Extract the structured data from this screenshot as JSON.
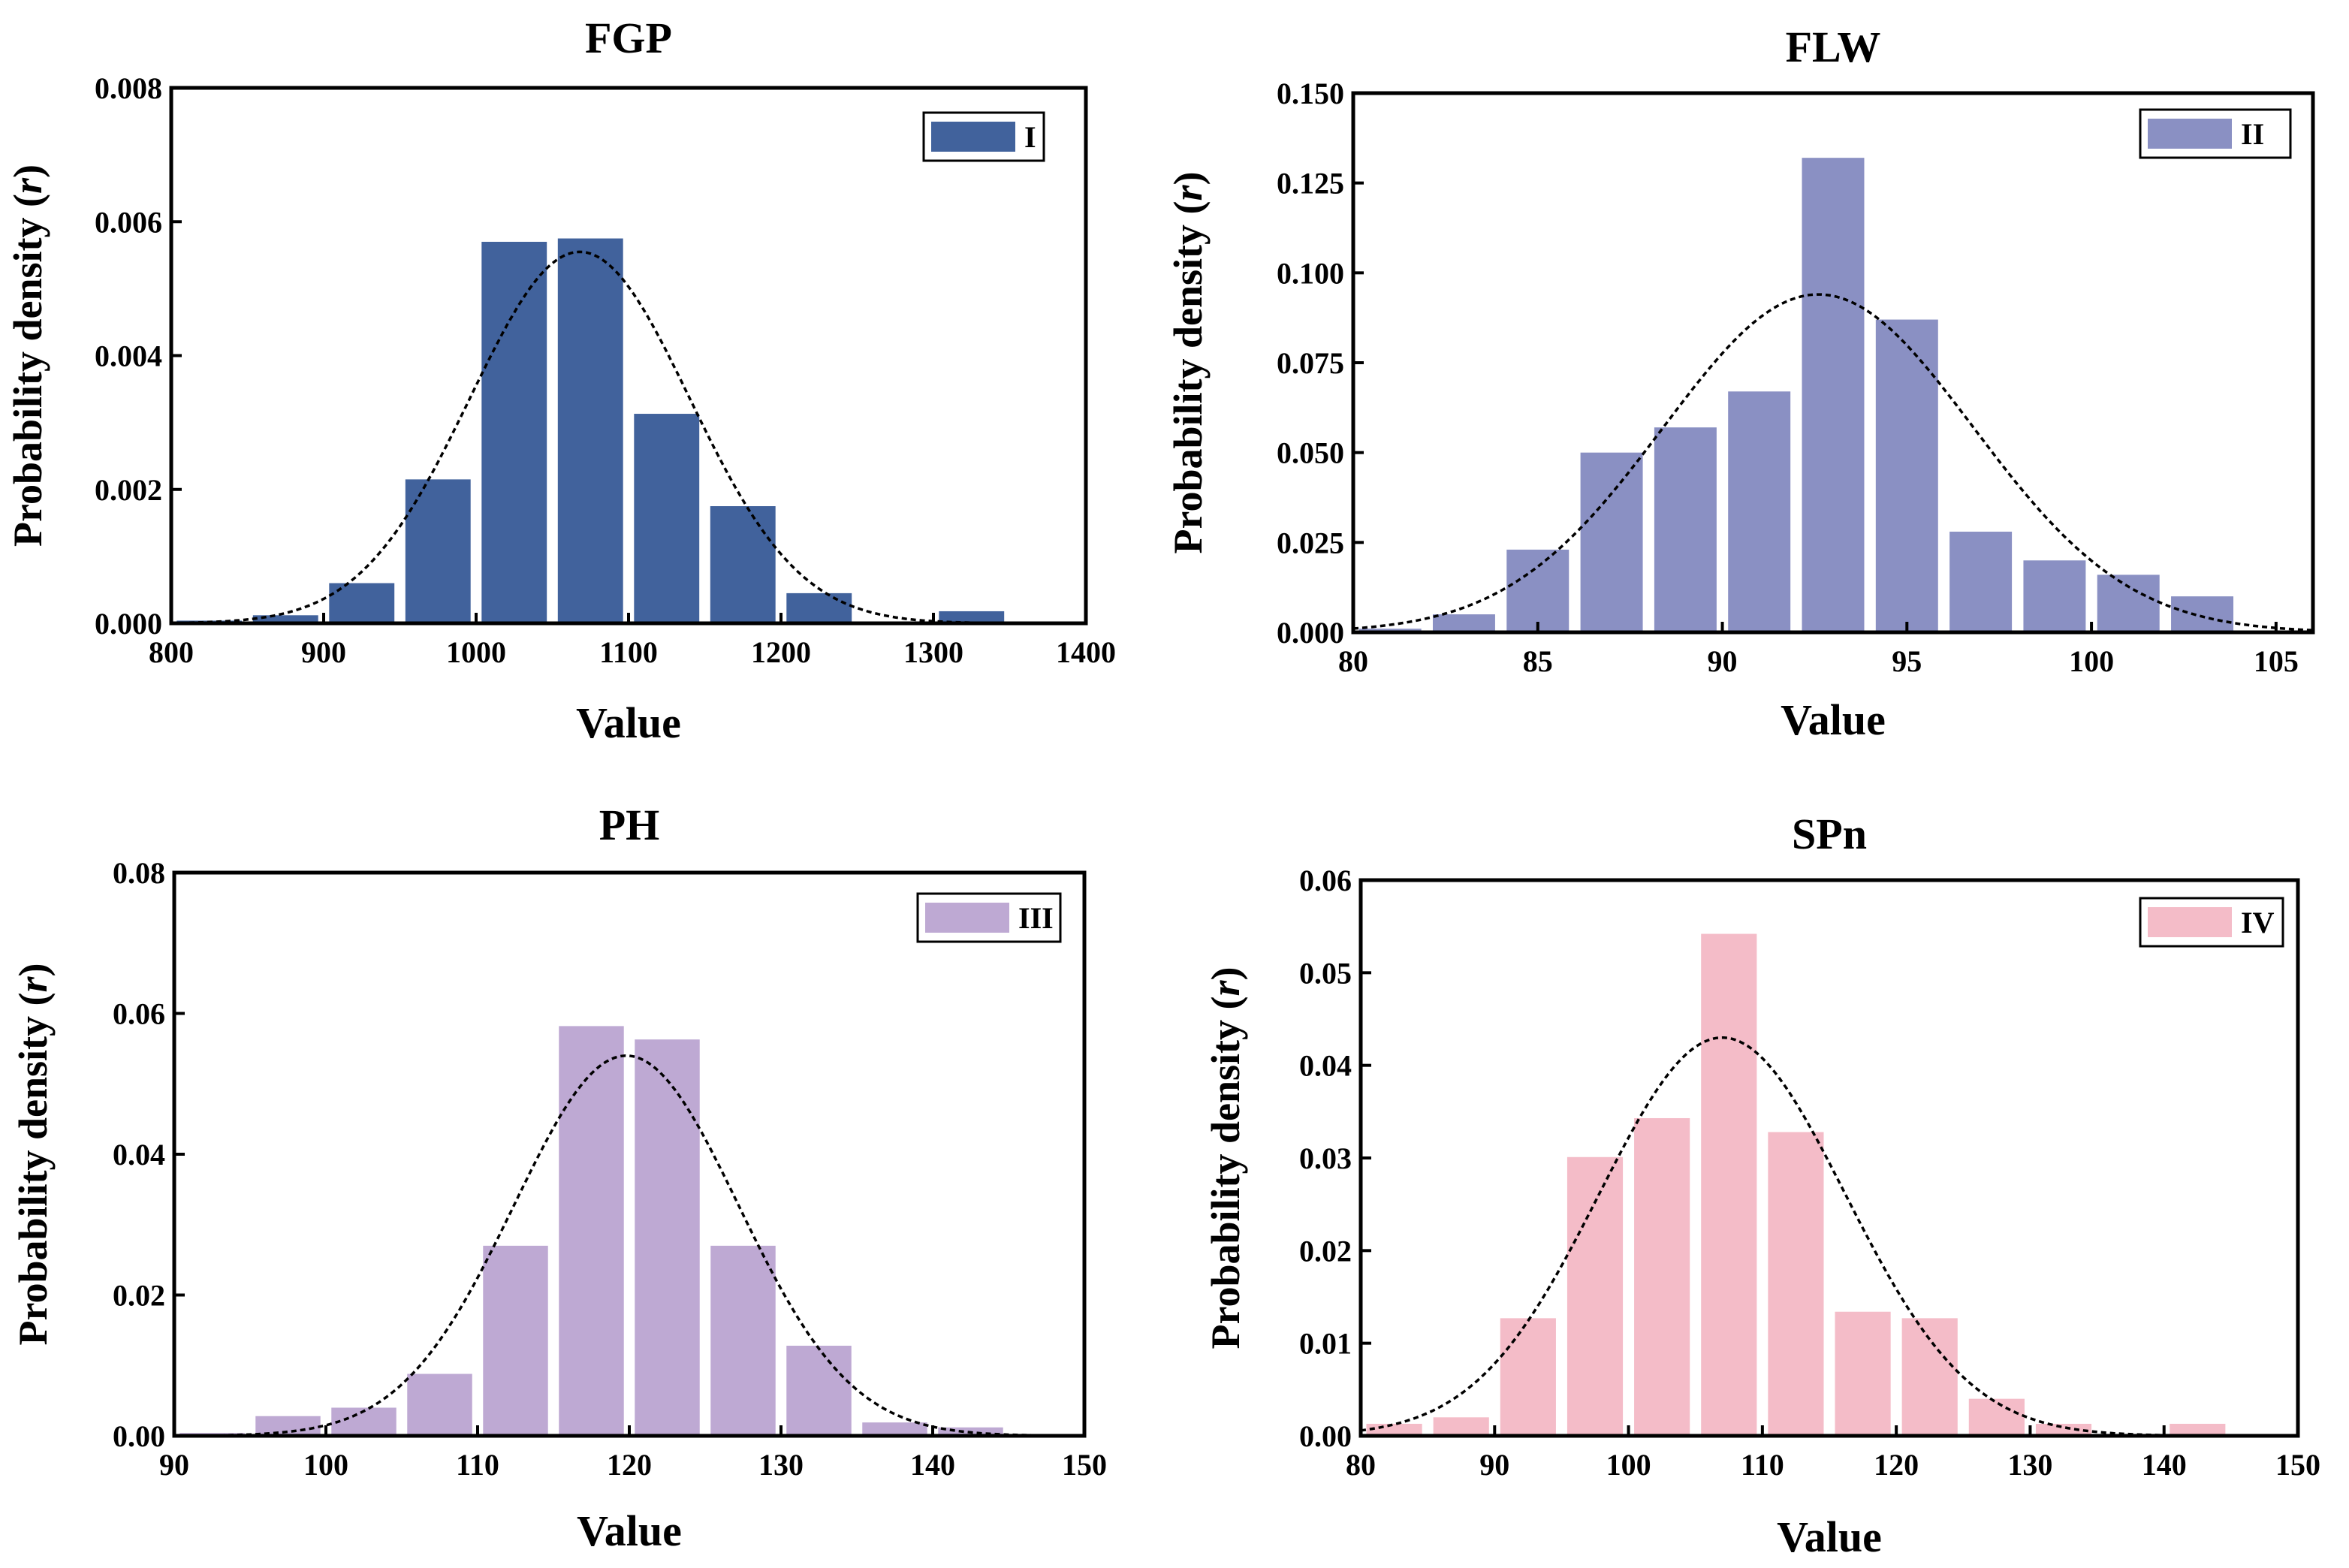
{
  "chart_data": [
    {
      "type": "bar",
      "title": "FGP",
      "xlabel": "Value",
      "ylabel_main": "Probability density (",
      "ylabel_var": "r",
      "ylabel_end": ")",
      "legend": "I",
      "color": "#41629C",
      "xlim": [
        800,
        1400
      ],
      "xticks": [
        800,
        900,
        1000,
        1100,
        1200,
        1300,
        1400
      ],
      "ylim": [
        0,
        0.008
      ],
      "yticks": [
        0.0,
        0.002,
        0.004,
        0.006,
        0.008
      ],
      "ytick_labels": [
        "0.000",
        "0.002",
        "0.004",
        "0.006",
        "0.008"
      ],
      "bin_width": 50,
      "bins": [
        [
          800,
          4e-05
        ],
        [
          850,
          0.00012
        ],
        [
          900,
          0.0006
        ],
        [
          950,
          0.00215
        ],
        [
          1000,
          0.0057
        ],
        [
          1050,
          0.00575
        ],
        [
          1100,
          0.00313
        ],
        [
          1150,
          0.00175
        ],
        [
          1200,
          0.00045
        ],
        [
          1250,
          0.0
        ],
        [
          1300,
          0.00018
        ]
      ],
      "curve": {
        "mean": 1068,
        "sd": 72,
        "peak": 0.00555
      }
    },
    {
      "type": "bar",
      "title": "FLW",
      "xlabel": "Value",
      "ylabel_main": "Probability density (",
      "ylabel_var": "r",
      "ylabel_end": ")",
      "legend": "II",
      "color": "#8A90C3",
      "xlim": [
        80,
        106
      ],
      "xticks": [
        80,
        85,
        90,
        95,
        100,
        105
      ],
      "ylim": [
        0,
        0.15
      ],
      "yticks": [
        0.0,
        0.025,
        0.05,
        0.075,
        0.1,
        0.125,
        0.15
      ],
      "ytick_labels": [
        "0.000",
        "0.025",
        "0.050",
        "0.075",
        "0.100",
        "0.125",
        "0.150"
      ],
      "bin_width": 2,
      "bins": [
        [
          80,
          0.001
        ],
        [
          82,
          0.005
        ],
        [
          84,
          0.023
        ],
        [
          86,
          0.05
        ],
        [
          88,
          0.057
        ],
        [
          90,
          0.067
        ],
        [
          92,
          0.132
        ],
        [
          94,
          0.087
        ],
        [
          96,
          0.028
        ],
        [
          98,
          0.02
        ],
        [
          100,
          0.016
        ],
        [
          102,
          0.01
        ],
        [
          104,
          0.0
        ]
      ],
      "curve": {
        "mean": 92.6,
        "sd": 4.2,
        "peak": 0.094
      }
    },
    {
      "type": "bar",
      "title": "PH",
      "xlabel": "Value",
      "ylabel_main": "Probability density (",
      "ylabel_var": "r",
      "ylabel_end": ")",
      "legend": "III",
      "color": "#BEA9D3",
      "xlim": [
        90,
        150
      ],
      "xticks": [
        90,
        100,
        110,
        120,
        130,
        140,
        150
      ],
      "ylim": [
        0,
        0.08
      ],
      "yticks": [
        0.0,
        0.02,
        0.04,
        0.06,
        0.08
      ],
      "ytick_labels": [
        "0.00",
        "0.02",
        "0.04",
        "0.06",
        "0.08"
      ],
      "bin_width": 5,
      "bins": [
        [
          90,
          0.0004
        ],
        [
          95,
          0.0028
        ],
        [
          100,
          0.004
        ],
        [
          105,
          0.0088
        ],
        [
          110,
          0.027
        ],
        [
          115,
          0.0582
        ],
        [
          120,
          0.0563
        ],
        [
          125,
          0.027
        ],
        [
          130,
          0.0128
        ],
        [
          135,
          0.0019
        ],
        [
          140,
          0.0012
        ]
      ],
      "curve": {
        "mean": 119.8,
        "sd": 7.4,
        "peak": 0.054
      }
    },
    {
      "type": "bar",
      "title": "SPn",
      "xlabel": "Value",
      "ylabel_main": "Probability density (",
      "ylabel_var": "r",
      "ylabel_end": ")",
      "legend": "IV",
      "color": "#F4BCC8",
      "xlim": [
        80,
        150
      ],
      "xticks": [
        80,
        90,
        100,
        110,
        120,
        130,
        140,
        150
      ],
      "ylim": [
        0,
        0.06
      ],
      "yticks": [
        0.0,
        0.01,
        0.02,
        0.03,
        0.04,
        0.05,
        0.06
      ],
      "ytick_labels": [
        "0.00",
        "0.01",
        "0.02",
        "0.03",
        "0.04",
        "0.05",
        "0.06"
      ],
      "bin_width": 5,
      "bins": [
        [
          80,
          0.0013
        ],
        [
          85,
          0.002
        ],
        [
          90,
          0.0127
        ],
        [
          95,
          0.0301
        ],
        [
          100,
          0.0343
        ],
        [
          105,
          0.0542
        ],
        [
          110,
          0.0328
        ],
        [
          115,
          0.0134
        ],
        [
          120,
          0.0127
        ],
        [
          125,
          0.004
        ],
        [
          130,
          0.0013
        ],
        [
          135,
          0.0
        ],
        [
          140,
          0.0013
        ]
      ],
      "curve": {
        "mean": 107,
        "sd": 9.2,
        "peak": 0.043
      }
    }
  ]
}
